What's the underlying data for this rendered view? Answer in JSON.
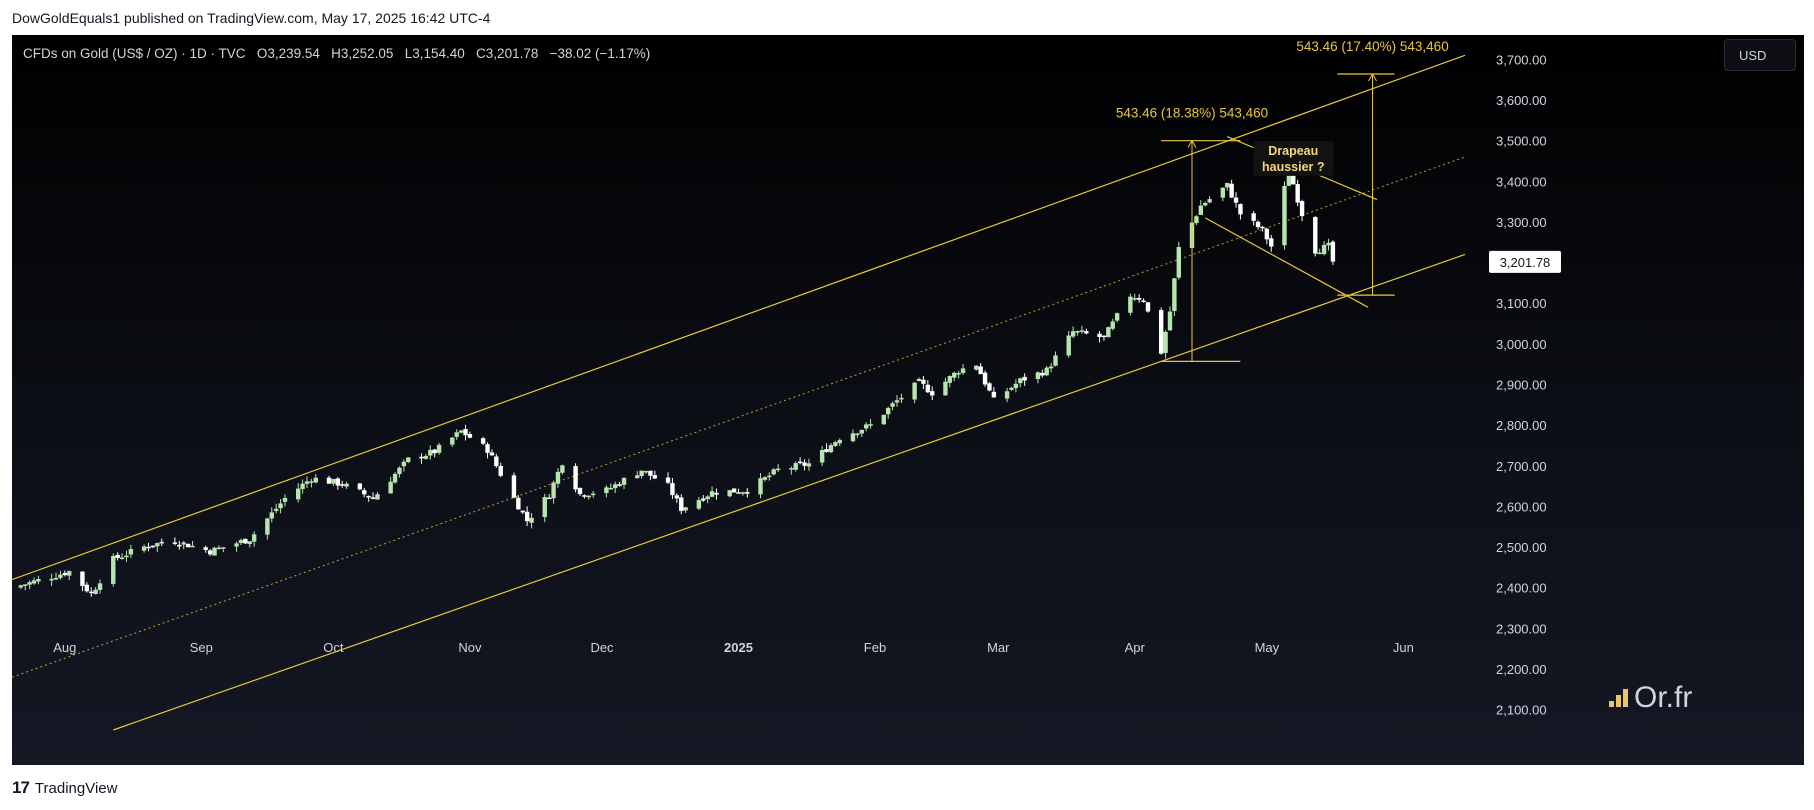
{
  "header": {
    "published_line": "DowGoldEquals1 published on TradingView.com, May 17, 2025 16:42 UTC-4"
  },
  "legend": {
    "symbol": "CFDs on Gold (US$ / OZ) · 1D · TVC",
    "open": "O3,239.54",
    "high": "H3,252.05",
    "low": "L3,154.40",
    "close": "C3,201.78",
    "change": "−38.02 (−1.17%)"
  },
  "currency_button": "USD",
  "last_price_label": "3,201.78",
  "logo_text": "Or.fr",
  "footer": {
    "brand": "TradingView"
  },
  "colors": {
    "background": "#000000",
    "up_candle": "#b7e4b0",
    "down_candle": "#ffffff",
    "annotation": "#e9c73a",
    "text": "#d1d4dc"
  },
  "chart_data": {
    "type": "candlestick",
    "title": "CFDs on Gold (US$ / OZ)",
    "y_range": [
      2050,
      3760
    ],
    "y_ticks": [
      "2,100.00",
      "2,200.00",
      "2,300.00",
      "2,400.00",
      "2,500.00",
      "2,600.00",
      "2,700.00",
      "2,800.00",
      "2,900.00",
      "3,000.00",
      "3,100.00",
      "3,200.00",
      "3,300.00",
      "3,400.00",
      "3,500.00",
      "3,600.00",
      "3,700.00"
    ],
    "x_ticks": [
      {
        "label": "Aug",
        "date": "2024-08-01",
        "bold": false
      },
      {
        "label": "Sep",
        "date": "2024-09-01",
        "bold": false
      },
      {
        "label": "Oct",
        "date": "2024-10-01",
        "bold": false
      },
      {
        "label": "Nov",
        "date": "2024-11-01",
        "bold": false
      },
      {
        "label": "Dec",
        "date": "2024-12-01",
        "bold": false
      },
      {
        "label": "2025",
        "date": "2025-01-01",
        "bold": true
      },
      {
        "label": "Feb",
        "date": "2025-02-01",
        "bold": false
      },
      {
        "label": "Mar",
        "date": "2025-03-01",
        "bold": false
      },
      {
        "label": "Apr",
        "date": "2025-04-01",
        "bold": false
      },
      {
        "label": "May",
        "date": "2025-05-01",
        "bold": false
      },
      {
        "label": "Jun",
        "date": "2025-06-01",
        "bold": false
      }
    ],
    "date_range": [
      "2024-07-20",
      "2025-06-20"
    ],
    "close_path": [
      [
        "2024-07-20",
        2400
      ],
      [
        "2024-08-02",
        2440
      ],
      [
        "2024-08-07",
        2385
      ],
      [
        "2024-08-12",
        2470
      ],
      [
        "2024-08-20",
        2505
      ],
      [
        "2024-08-26",
        2515
      ],
      [
        "2024-09-03",
        2490
      ],
      [
        "2024-09-12",
        2520
      ],
      [
        "2024-09-20",
        2620
      ],
      [
        "2024-09-26",
        2670
      ],
      [
        "2024-10-03",
        2655
      ],
      [
        "2024-10-10",
        2620
      ],
      [
        "2024-10-18",
        2715
      ],
      [
        "2024-10-24",
        2735
      ],
      [
        "2024-10-30",
        2785
      ],
      [
        "2024-11-05",
        2740
      ],
      [
        "2024-11-11",
        2620
      ],
      [
        "2024-11-14",
        2565
      ],
      [
        "2024-11-19",
        2630
      ],
      [
        "2024-11-22",
        2710
      ],
      [
        "2024-11-26",
        2630
      ],
      [
        "2024-12-02",
        2640
      ],
      [
        "2024-12-10",
        2690
      ],
      [
        "2024-12-16",
        2650
      ],
      [
        "2024-12-19",
        2595
      ],
      [
        "2024-12-26",
        2635
      ],
      [
        "2025-01-03",
        2640
      ],
      [
        "2025-01-10",
        2690
      ],
      [
        "2025-01-17",
        2705
      ],
      [
        "2025-01-24",
        2770
      ],
      [
        "2025-01-31",
        2800
      ],
      [
        "2025-02-06",
        2860
      ],
      [
        "2025-02-11",
        2905
      ],
      [
        "2025-02-14",
        2880
      ],
      [
        "2025-02-20",
        2935
      ],
      [
        "2025-02-24",
        2950
      ],
      [
        "2025-02-28",
        2860
      ],
      [
        "2025-03-06",
        2910
      ],
      [
        "2025-03-12",
        2935
      ],
      [
        "2025-03-18",
        3030
      ],
      [
        "2025-03-25",
        3015
      ],
      [
        "2025-03-31",
        3120
      ],
      [
        "2025-04-03",
        3110
      ],
      [
        "2025-04-07",
        2980
      ],
      [
        "2025-04-09",
        3080
      ],
      [
        "2025-04-11",
        3235
      ],
      [
        "2025-04-16",
        3340
      ],
      [
        "2025-04-22",
        3390
      ],
      [
        "2025-04-25",
        3320
      ],
      [
        "2025-04-30",
        3280
      ],
      [
        "2025-05-02",
        3240
      ],
      [
        "2025-05-06",
        3430
      ],
      [
        "2025-05-09",
        3320
      ],
      [
        "2025-05-12",
        3230
      ],
      [
        "2025-05-15",
        3240
      ],
      [
        "2025-05-16",
        3201.78
      ]
    ],
    "channel_upper": {
      "from": [
        "2024-07-20",
        2420
      ],
      "to": [
        "2025-06-15",
        3710
      ]
    },
    "channel_middle": {
      "from": [
        "2024-07-20",
        2180
      ],
      "to": [
        "2025-06-15",
        3460
      ]
    },
    "channel_lower": {
      "from": [
        "2024-08-12",
        2050
      ],
      "to": [
        "2025-06-15",
        3220
      ]
    },
    "flag_top": {
      "from": [
        "2025-04-22",
        3510
      ],
      "to": [
        "2025-05-26",
        3355
      ]
    },
    "flag_bottom": {
      "from": [
        "2025-04-17",
        3310
      ],
      "to": [
        "2025-05-24",
        3090
      ]
    },
    "measured_moves": [
      {
        "label": "543.46 (18.38%) 543,460",
        "date": "2025-04-14",
        "from": 2957,
        "to": 3500,
        "bracket": [
          "2025-04-07",
          "2025-04-25"
        ]
      },
      {
        "label": "543.46 (17.40%) 543,460",
        "date": "2025-05-25",
        "from": 3120,
        "to": 3664,
        "bracket": [
          "2025-05-17",
          "2025-05-30"
        ]
      }
    ],
    "annotation": {
      "text": [
        "Drapeau",
        "haussier ?"
      ],
      "date": "2025-05-07",
      "value": 3465
    },
    "last_price": 3201.78
  }
}
